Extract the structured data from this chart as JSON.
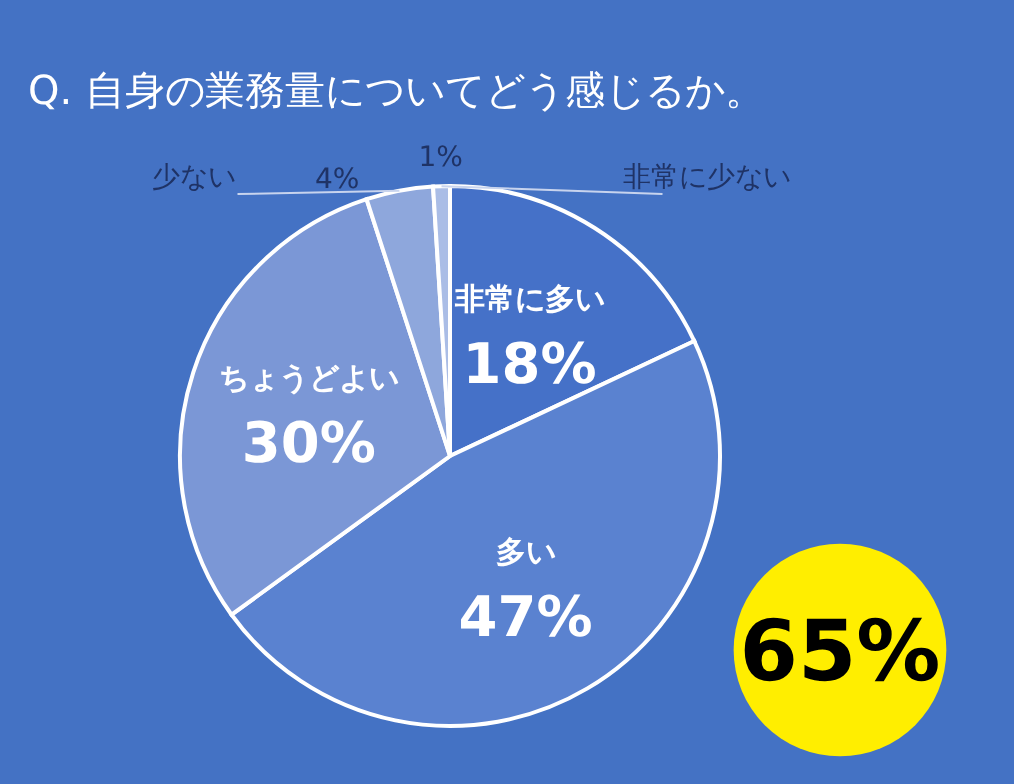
{
  "chart_data": {
    "type": "pie",
    "title": "Q. 自身の業務量についてどう感じるか。",
    "categories": [
      "非常に多い",
      "多い",
      "ちょうどよい",
      "少ない",
      "非常に少ない"
    ],
    "values": [
      18,
      47,
      30,
      4,
      1
    ],
    "colors": [
      "#4571c8",
      "#5a82d0",
      "#7b97d6",
      "#8ea7dc",
      "#aabde6"
    ],
    "value_labels": [
      "18%",
      "47%",
      "30%",
      "4%",
      "1%"
    ],
    "annotations": [
      "65%"
    ]
  }
}
